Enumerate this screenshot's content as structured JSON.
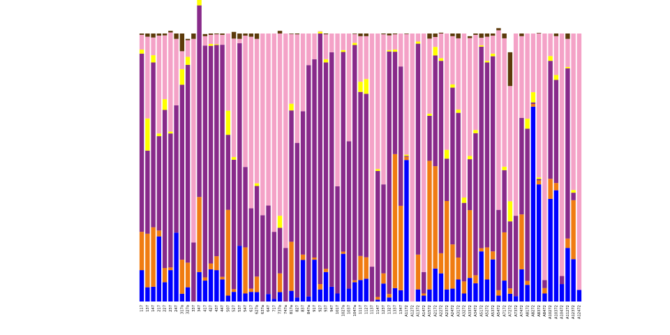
{
  "chart_data": {
    "type": "bar",
    "stacked": true,
    "normalized": true,
    "ylim": [
      0,
      1
    ],
    "grid": false,
    "axes_visible": false,
    "categories": [
      "117",
      "137",
      "147",
      "217",
      "227",
      "237",
      "247",
      "317a",
      "327a",
      "337",
      "347",
      "417",
      "427",
      "437",
      "447",
      "507",
      "527",
      "537",
      "547",
      "617",
      "627a",
      "637a",
      "647",
      "717",
      "737a",
      "747a",
      "817a",
      "827",
      "837",
      "847a",
      "917",
      "927",
      "937",
      "947",
      "1017",
      "1027a",
      "1037",
      "1047a",
      "1117",
      "1127",
      "1137",
      "1147",
      "1237",
      "1327",
      "1337",
      "1347",
      "A1172",
      "A1272",
      "A1372",
      "A1472",
      "A1572",
      "A2172",
      "A2272",
      "A2372",
      "A2472",
      "A3172",
      "A3272",
      "A3372",
      "A3472",
      "A5172",
      "A5272",
      "A5372",
      "A5472",
      "A7172",
      "A7272",
      "A7372",
      "A7472",
      "A8172",
      "A8272",
      "A8372",
      "A8472",
      "A10272",
      "A10372",
      "A10472",
      "A11272",
      "A12372",
      "A12472"
    ],
    "series": [
      {
        "color": "#0000ff",
        "values": [
          0.117,
          0.053,
          0.055,
          0.243,
          0.072,
          0.117,
          0.257,
          0.029,
          0.053,
          0,
          0.11,
          0.078,
          0.12,
          0.117,
          0.082,
          0.022,
          0.036,
          0.208,
          0.03,
          0.036,
          0.035,
          0,
          0.028,
          0.01,
          0.035,
          0,
          0.04,
          0.015,
          0.155,
          0.019,
          0.156,
          0.045,
          0.11,
          0.055,
          0.03,
          0.178,
          0.048,
          0.072,
          0.08,
          0.085,
          0,
          0.007,
          0.067,
          0.015,
          0.05,
          0.042,
          0.528,
          0,
          0.045,
          0.022,
          0.045,
          0.123,
          0.105,
          0.045,
          0.048,
          0.082,
          0.03,
          0.088,
          0.068,
          0.187,
          0.082,
          0.157,
          0.022,
          0.078,
          0.029,
          0.02,
          0.12,
          0.062,
          0.727,
          0.437,
          0.03,
          0.383,
          0.415,
          0.065,
          0.2,
          0.158,
          0.043
        ]
      },
      {
        "color": "#f07c12",
        "values": [
          0.143,
          0.2,
          0.222,
          0.022,
          0.053,
          0.01,
          0,
          0.127,
          0.092,
          0,
          0.28,
          0.012,
          0.022,
          0.052,
          0.01,
          0.32,
          0.01,
          0,
          0.172,
          0.012,
          0.058,
          0,
          0,
          0,
          0.07,
          0,
          0.183,
          0,
          0.02,
          0,
          0.008,
          0.02,
          0.012,
          0,
          0,
          0.008,
          0,
          0.007,
          0.09,
          0.08,
          0,
          0.01,
          0.038,
          0.013,
          0.5,
          0.315,
          0.012,
          0,
          0.13,
          0.008,
          0.48,
          0.382,
          0.075,
          0.33,
          0.165,
          0.082,
          0.045,
          0.253,
          0.03,
          0.012,
          0.12,
          0.03,
          0.02,
          0.18,
          0.02,
          0,
          0.205,
          0.015,
          0.01,
          0.015,
          0.02,
          0.075,
          0.027,
          0,
          0.035,
          0.22,
          0
        ]
      },
      {
        "color": "#882a8a",
        "values": [
          0.665,
          0.31,
          0.615,
          0.352,
          0.59,
          0.5,
          0.475,
          0.653,
          0.738,
          0.22,
          0.715,
          0.865,
          0.812,
          0.788,
          0.866,
          0.28,
          0.483,
          0.756,
          0.3,
          0.3,
          0.338,
          0.322,
          0.33,
          0.25,
          0.17,
          0.2,
          0.49,
          0.577,
          0.535,
          0.863,
          0.74,
          0.935,
          0.77,
          0.875,
          0.4,
          0.745,
          0.55,
          0.878,
          0.612,
          0.61,
          0.13,
          0.47,
          0.332,
          0.905,
          0.382,
          0.52,
          0.003,
          0,
          0.787,
          0.08,
          0.168,
          0.413,
          0.718,
          0.158,
          0.585,
          0.54,
          0.293,
          0.19,
          0.53,
          0.752,
          0.69,
          0.728,
          0.3,
          0.232,
          0.25,
          0.3,
          0.36,
          0.568,
          0.006,
          0.005,
          0.03,
          0.44,
          0.385,
          0.03,
          0.635,
          0.028,
          0
        ]
      },
      {
        "color": "#ffff00",
        "values": [
          0.015,
          0.12,
          0.027,
          0.01,
          0.04,
          0.007,
          0,
          0.058,
          0.03,
          0,
          0.075,
          0,
          0.007,
          0.003,
          0,
          0.09,
          0.01,
          0,
          0,
          0,
          0.01,
          0,
          0,
          0,
          0.045,
          0,
          0.025,
          0,
          0,
          0,
          0,
          0.007,
          0.012,
          0,
          0,
          0.007,
          0,
          0.008,
          0.038,
          0.055,
          0,
          0.007,
          0,
          0.005,
          0.008,
          0,
          0.005,
          0,
          0.008,
          0,
          0.008,
          0.032,
          0.01,
          0.033,
          0.012,
          0.012,
          0.02,
          0.012,
          0.012,
          0.005,
          0.006,
          0.01,
          0,
          0.013,
          0.075,
          0,
          0,
          0.037,
          0.038,
          0.006,
          0,
          0.018,
          0.018,
          0,
          0.005,
          0.01,
          0
        ]
      },
      {
        "color": "#f4a2c7",
        "values": [
          0.055,
          0.305,
          0.066,
          0.365,
          0.238,
          0.37,
          0.248,
          0.067,
          0.062,
          0.76,
          0.007,
          0.035,
          0.034,
          0.037,
          0.037,
          0.288,
          0.442,
          0.016,
          0.49,
          0.64,
          0.539,
          0.678,
          0.642,
          0.74,
          0.68,
          0.8,
          0.26,
          0.405,
          0.29,
          0.118,
          0.096,
          0.002,
          0.093,
          0.07,
          0.57,
          0.062,
          0.402,
          0.033,
          0.17,
          0.16,
          0.87,
          0.506,
          0.56,
          0.055,
          0.057,
          0.123,
          0.45,
          1,
          0.03,
          0.89,
          0.28,
          0.037,
          0.092,
          0.434,
          0.18,
          0.266,
          0.612,
          0.44,
          0.355,
          0.028,
          0.09,
          0.067,
          0.67,
          0.479,
          0.43,
          0.68,
          0.305,
          0.318,
          0.219,
          0.537,
          0.92,
          0.084,
          0.145,
          0.905,
          0.105,
          0.584,
          0.957
        ]
      },
      {
        "color": "#5c3a0a",
        "values": [
          0.005,
          0.012,
          0.015,
          0.008,
          0.007,
          0.006,
          0.02,
          0.066,
          0.005,
          0.02,
          0.035,
          0.008,
          0.005,
          0.003,
          0.005,
          0,
          0.025,
          0.02,
          0.008,
          0.012,
          0.02,
          0,
          0,
          0,
          0.01,
          0,
          0.002,
          0.003,
          0,
          0,
          0,
          0,
          0.003,
          0,
          0,
          0,
          0,
          0.002,
          0.01,
          0.01,
          0,
          0,
          0.003,
          0.007,
          0.003,
          0,
          0.002,
          0,
          0,
          0,
          0.019,
          0.013,
          0.003,
          0,
          0.01,
          0.018,
          0,
          0.007,
          0.005,
          0.016,
          0.012,
          0.008,
          0.008,
          0.018,
          0.126,
          0,
          0.01,
          0,
          0,
          0.002,
          0,
          0,
          0.01,
          0,
          0.02,
          0,
          0
        ]
      }
    ]
  }
}
